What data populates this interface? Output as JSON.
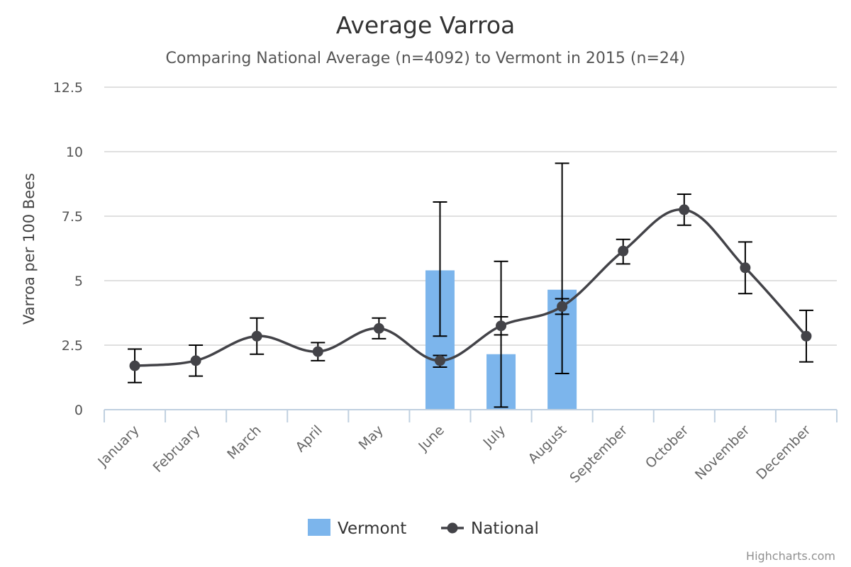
{
  "chart_data": {
    "type": "bar",
    "title": "Average Varroa",
    "subtitle": "Comparing National Average (n=4092) to Vermont in 2015 (n=24)",
    "ylabel": "Varroa per 100 Bees",
    "xlabel": "",
    "ylim": [
      0,
      12.5
    ],
    "yticks": [
      0,
      2.5,
      5,
      7.5,
      10,
      12.5
    ],
    "ytick_labels": [
      "0",
      "2.5",
      "5",
      "7.5",
      "10",
      "12.5"
    ],
    "grid": true,
    "legend_position": "bottom-center",
    "categories": [
      "January",
      "February",
      "March",
      "April",
      "May",
      "June",
      "July",
      "August",
      "September",
      "October",
      "November",
      "December"
    ],
    "series": [
      {
        "name": "Vermont",
        "type": "bar",
        "color": "#7cb5ec",
        "values": [
          null,
          null,
          null,
          null,
          null,
          5.4,
          2.15,
          4.65,
          null,
          null,
          null,
          null
        ],
        "error_low": [
          null,
          null,
          null,
          null,
          null,
          2.85,
          0.1,
          1.4,
          null,
          null,
          null,
          null
        ],
        "error_high": [
          null,
          null,
          null,
          null,
          null,
          8.05,
          5.75,
          9.55,
          null,
          null,
          null,
          null
        ]
      },
      {
        "name": "National",
        "type": "spline",
        "color": "#434348",
        "values": [
          1.7,
          1.9,
          2.85,
          2.25,
          3.15,
          1.9,
          3.25,
          4.0,
          6.15,
          7.75,
          5.5,
          2.85
        ],
        "error_low": [
          1.05,
          1.3,
          2.15,
          1.9,
          2.75,
          1.65,
          2.9,
          3.7,
          5.65,
          7.15,
          4.5,
          1.85
        ],
        "error_high": [
          2.35,
          2.5,
          3.55,
          2.6,
          3.55,
          2.1,
          3.6,
          4.3,
          6.6,
          8.35,
          6.5,
          3.85
        ]
      }
    ]
  },
  "credits": "Highcharts.com"
}
